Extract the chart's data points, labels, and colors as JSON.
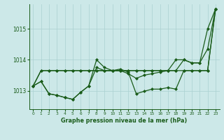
{
  "title": "Graphe pression niveau de la mer (hPa)",
  "background_color": "#cce8e8",
  "grid_color": "#aad0d0",
  "line_color": "#1a5c1a",
  "xlim": [
    -0.5,
    23.5
  ],
  "ylim": [
    1012.4,
    1015.8
  ],
  "yticks": [
    1013,
    1014,
    1015
  ],
  "xticks": [
    0,
    1,
    2,
    3,
    4,
    5,
    6,
    7,
    8,
    9,
    10,
    11,
    12,
    13,
    14,
    15,
    16,
    17,
    18,
    19,
    20,
    21,
    22,
    23
  ],
  "s1": [
    1013.15,
    1013.65,
    1013.65,
    1013.65,
    1013.65,
    1013.65,
    1013.65,
    1013.65,
    1013.65,
    1013.65,
    1013.65,
    1013.65,
    1013.65,
    1013.65,
    1013.65,
    1013.65,
    1013.65,
    1013.65,
    1013.65,
    1013.65,
    1013.65,
    1013.65,
    1013.65,
    1015.65
  ],
  "s2": [
    1013.15,
    1013.3,
    1012.9,
    1012.85,
    1012.78,
    1012.72,
    1012.95,
    1013.15,
    1014.0,
    1013.75,
    1013.65,
    1013.7,
    1013.6,
    1012.9,
    1012.98,
    1013.05,
    1013.05,
    1013.1,
    1013.05,
    1013.65,
    1013.65,
    1013.65,
    1013.65,
    1015.65
  ],
  "s3": [
    1013.15,
    1013.3,
    1012.9,
    1012.85,
    1012.78,
    1012.72,
    1012.95,
    1013.15,
    1013.75,
    1013.65,
    1013.65,
    1013.65,
    1013.55,
    1013.4,
    1013.5,
    1013.55,
    1013.6,
    1013.65,
    1014.0,
    1014.0,
    1013.9,
    1013.9,
    1014.35,
    1015.65
  ],
  "s4": [
    1013.15,
    1013.65,
    1013.65,
    1013.65,
    1013.65,
    1013.65,
    1013.65,
    1013.65,
    1013.65,
    1013.65,
    1013.65,
    1013.65,
    1013.65,
    1013.65,
    1013.65,
    1013.65,
    1013.65,
    1013.65,
    1013.65,
    1014.0,
    1013.9,
    1013.9,
    1015.0,
    1015.65
  ],
  "marker": "D",
  "markersize": 2.0,
  "linewidth": 0.9
}
